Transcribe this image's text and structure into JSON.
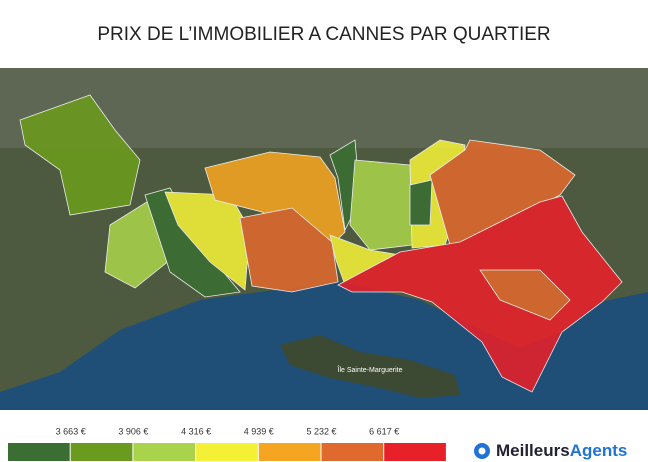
{
  "title": "PRIX DE L’IMMOBILIER A CANNES PAR QUARTIER",
  "map": {
    "island_label": "Île Sainte-Marguerite"
  },
  "legend": {
    "colors": [
      "#3b6e33",
      "#6b9b1e",
      "#a9d34b",
      "#f4f036",
      "#f5a521",
      "#e0692d",
      "#e8202a"
    ],
    "ticks": [
      {
        "value": 3663,
        "label": "3 663 €"
      },
      {
        "value": 3906,
        "label": "3 906 €"
      },
      {
        "value": 4316,
        "label": "4 316 €"
      },
      {
        "value": 4939,
        "label": "4 939 €"
      },
      {
        "value": 5232,
        "label": "5 232 €"
      },
      {
        "value": 6617,
        "label": "6 617 €"
      }
    ]
  },
  "logo": {
    "part1": "Meilleurs",
    "part2": "Agents"
  }
}
